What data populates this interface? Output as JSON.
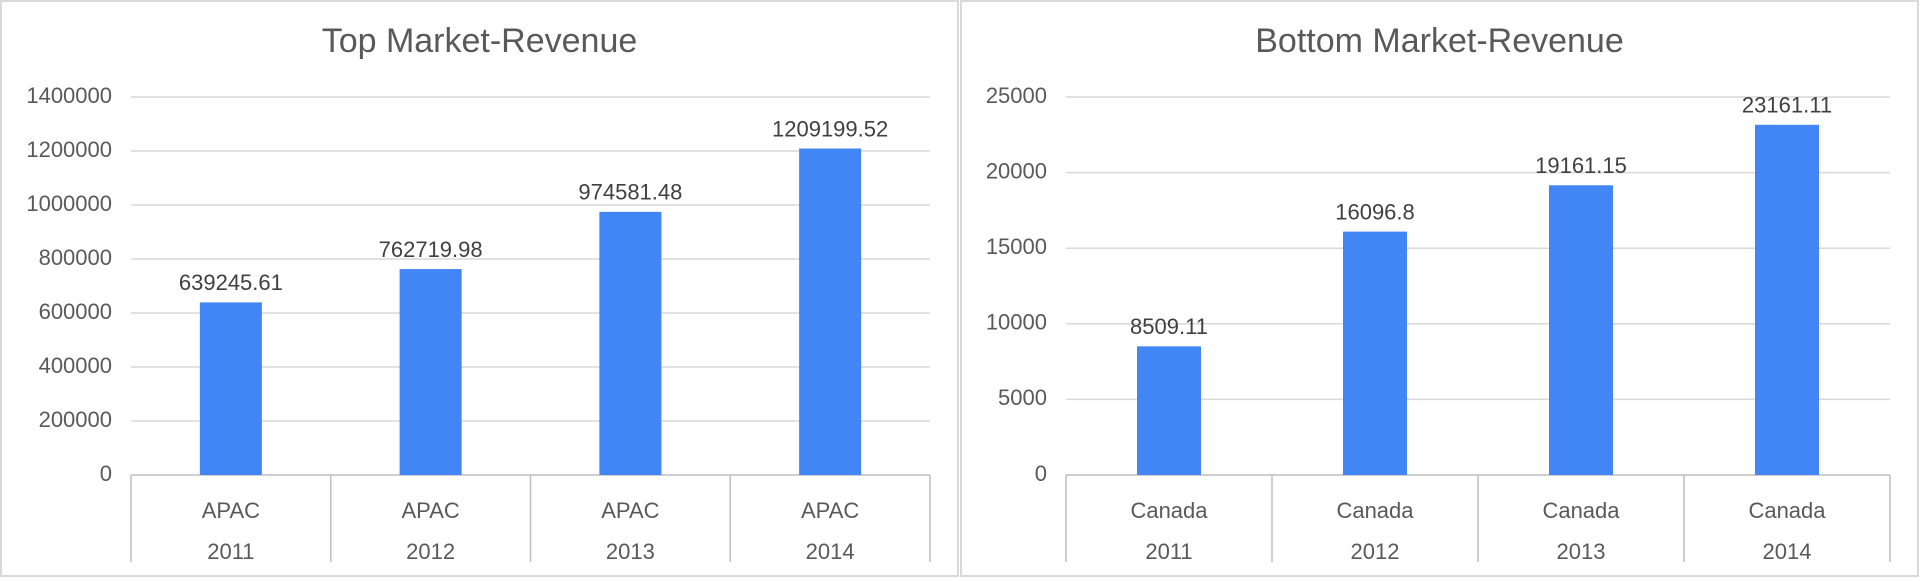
{
  "colors": {
    "bar": "#4285F4"
  },
  "chart_data": [
    {
      "type": "bar",
      "title": "Top Market-Revenue",
      "categories": [
        {
          "market": "APAC",
          "year": "2011"
        },
        {
          "market": "APAC",
          "year": "2012"
        },
        {
          "market": "APAC",
          "year": "2013"
        },
        {
          "market": "APAC",
          "year": "2014"
        }
      ],
      "values": [
        639245.61,
        762719.98,
        974581.48,
        1209199.52
      ],
      "data_labels": [
        "639245.61",
        "762719.98",
        "974581.48",
        "1209199.52"
      ],
      "yticks": [
        "0",
        "200000",
        "400000",
        "600000",
        "800000",
        "1000000",
        "1200000",
        "1400000"
      ],
      "ylim": [
        0,
        1400000
      ],
      "xlabel": "",
      "ylabel": "",
      "grid": true,
      "legend": "none"
    },
    {
      "type": "bar",
      "title": "Bottom Market-Revenue",
      "categories": [
        {
          "market": "Canada",
          "year": "2011"
        },
        {
          "market": "Canada",
          "year": "2012"
        },
        {
          "market": "Canada",
          "year": "2013"
        },
        {
          "market": "Canada",
          "year": "2014"
        }
      ],
      "values": [
        8509.11,
        16096.8,
        19161.15,
        23161.11
      ],
      "data_labels": [
        "8509.11",
        "16096.8",
        "19161.15",
        "23161.11"
      ],
      "yticks": [
        "0",
        "5000",
        "10000",
        "15000",
        "20000",
        "25000"
      ],
      "ylim": [
        0,
        25000
      ],
      "xlabel": "",
      "ylabel": "",
      "grid": true,
      "legend": "none"
    }
  ]
}
